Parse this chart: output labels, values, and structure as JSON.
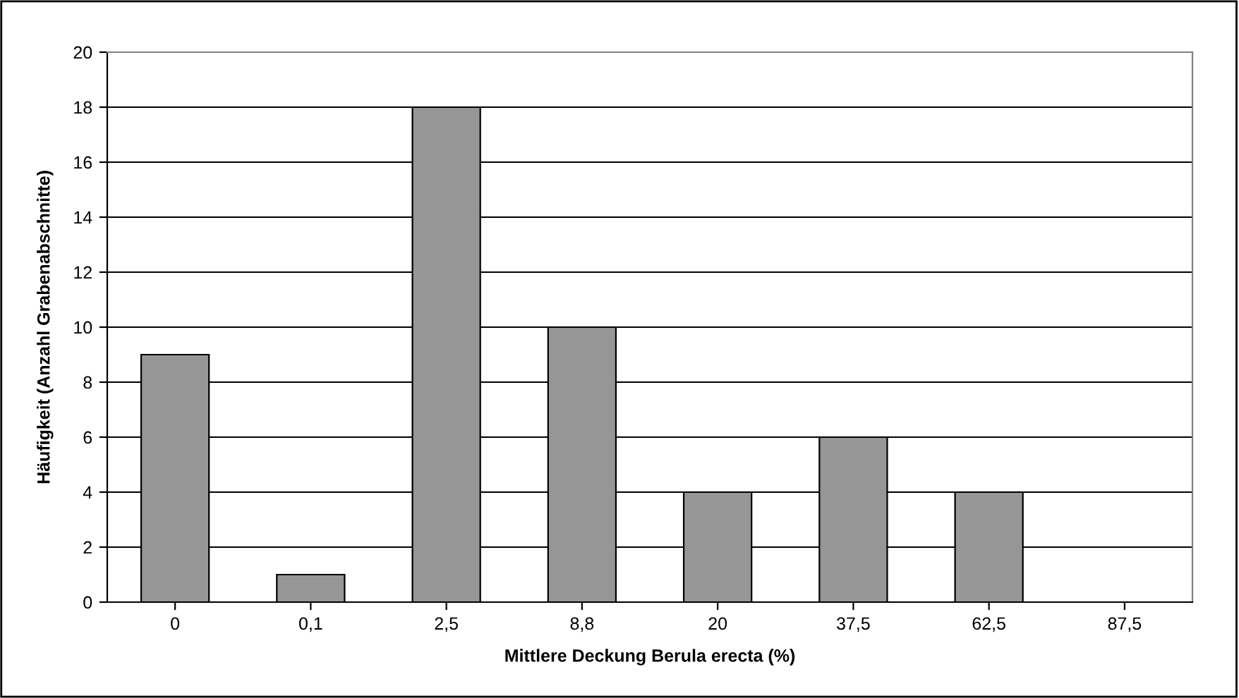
{
  "chart_data": {
    "type": "bar",
    "xlabel": "Mittlere Deckung Berula erecta (%)",
    "ylabel": "Häufigkeit (Anzahl Grabenabschnitte)",
    "categories": [
      "0",
      "0,1",
      "2,5",
      "8,8",
      "20",
      "37,5",
      "62,5",
      "87,5"
    ],
    "values": [
      9,
      1,
      18,
      10,
      4,
      6,
      4,
      0
    ],
    "color": "#969696",
    "ylim": [
      0,
      20
    ],
    "yticks": [
      0,
      2,
      4,
      6,
      8,
      10,
      12,
      14,
      16,
      18,
      20
    ],
    "grid": "y",
    "legend": false
  }
}
